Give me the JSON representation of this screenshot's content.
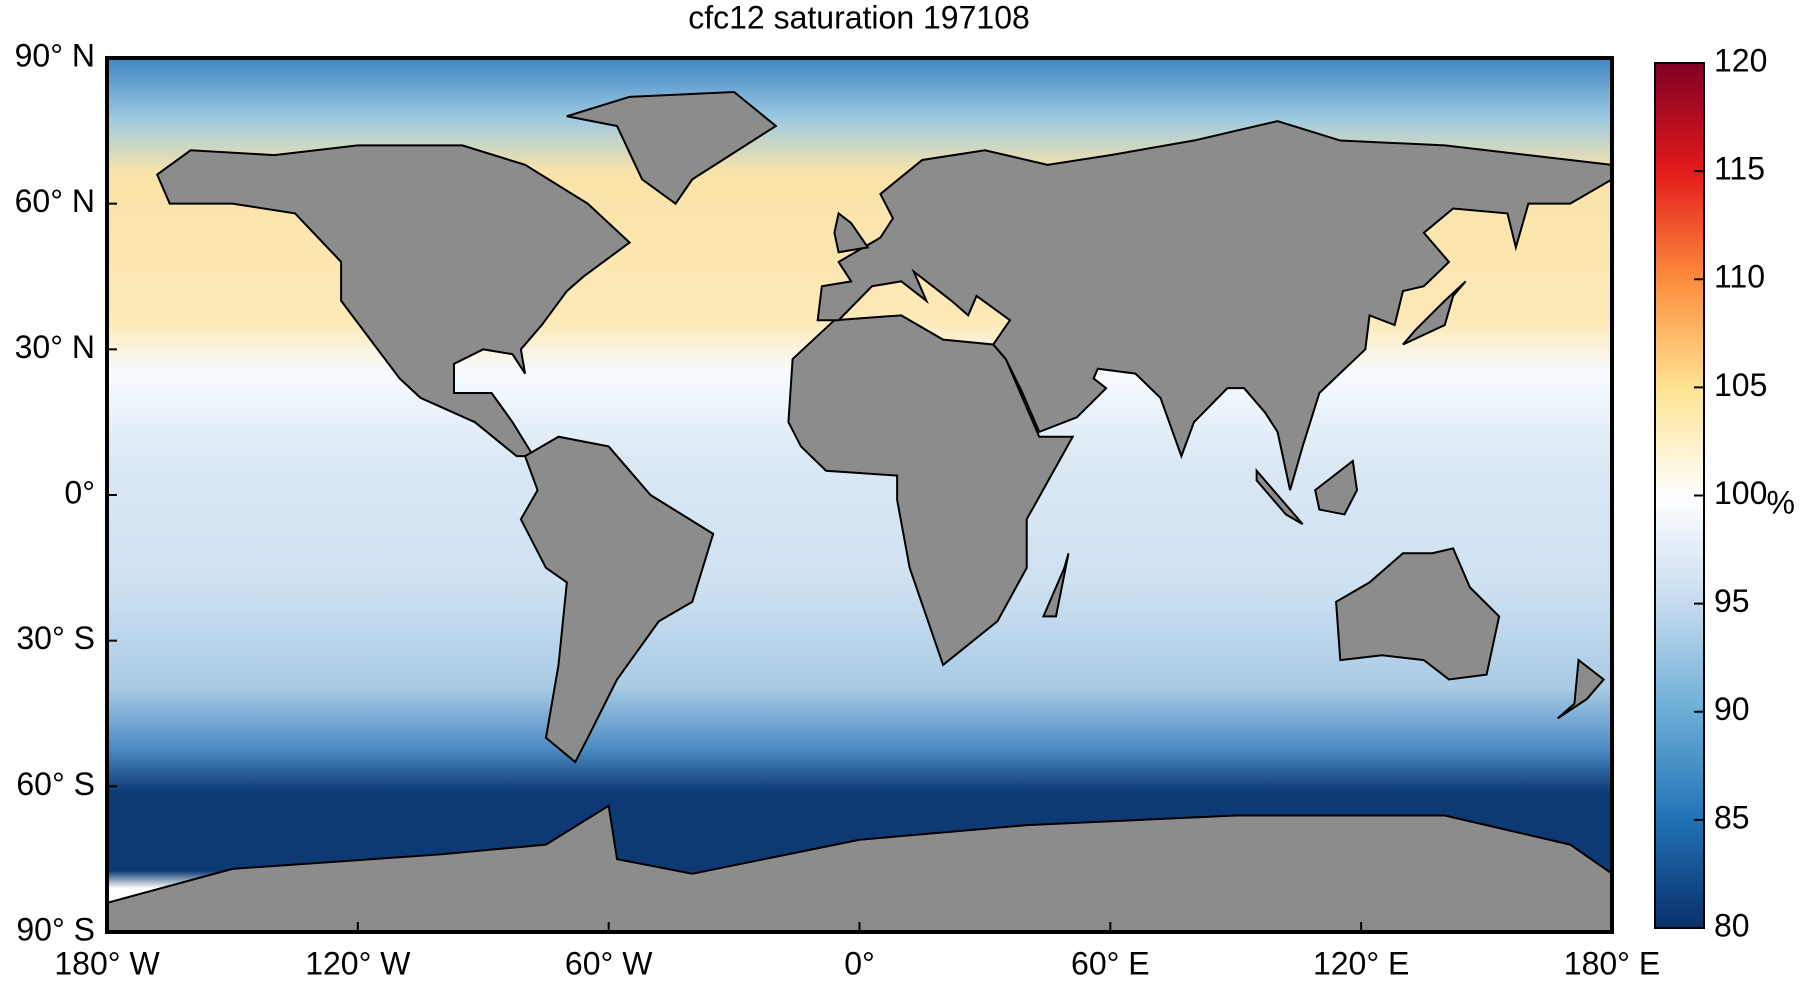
{
  "chart_data": {
    "type": "map",
    "title": "cfc12 saturation 197108",
    "xlim": [
      -180,
      180
    ],
    "ylim": [
      -90,
      90
    ],
    "xticks": [
      {
        "value": -180,
        "label": "180° W"
      },
      {
        "value": -120,
        "label": "120° W"
      },
      {
        "value": -60,
        "label": "60° W"
      },
      {
        "value": 0,
        "label": "0°"
      },
      {
        "value": 60,
        "label": "60° E"
      },
      {
        "value": 120,
        "label": "120° E"
      },
      {
        "value": 180,
        "label": "180° E"
      }
    ],
    "yticks": [
      {
        "value": 90,
        "label": "90° N"
      },
      {
        "value": 60,
        "label": "60° N"
      },
      {
        "value": 30,
        "label": "30° N"
      },
      {
        "value": 0,
        "label": "0°"
      },
      {
        "value": -30,
        "label": "30° S"
      },
      {
        "value": -60,
        "label": "60° S"
      },
      {
        "value": -90,
        "label": "90° S"
      }
    ],
    "colorbar": {
      "lim": [
        80,
        120
      ],
      "ticks": [
        80,
        85,
        90,
        95,
        100,
        105,
        110,
        115,
        120
      ],
      "label": "%",
      "colormap": [
        "#08306b",
        "#2171b5",
        "#6baed6",
        "#c6dbef",
        "#ffffff",
        "#fee391",
        "#fd8d3c",
        "#e31a1c",
        "#800026"
      ]
    },
    "land_color": "#8c8c8c"
  }
}
